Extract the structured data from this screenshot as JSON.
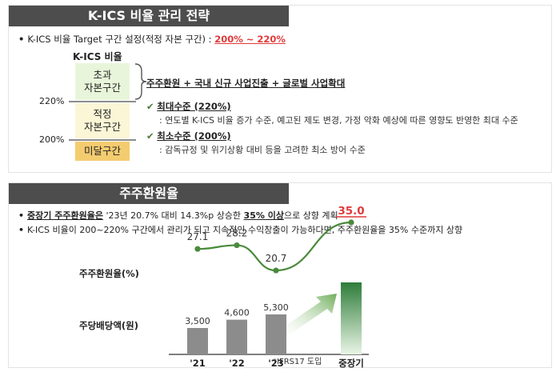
{
  "panel1": {
    "header": "K-ICS 비율 관리 전략",
    "target_prefix": "K-ICS 비율 Target 구간 설정(적정 자본 구간) : ",
    "target_value": "200% ~ 220%",
    "ladder_title": "K-ICS 비율",
    "excess_label": "초과\n자본구간",
    "proper_label": "적정\n자본구간",
    "short_label": "미달구간",
    "pct_220": "220%",
    "pct_200": "200%",
    "brace_text": "주주환원 + 국내 신규 사업진출 + 글로벌 사업확대",
    "max_title": "최대수준 (220%)",
    "max_desc": ": 연도별 K-ICS 비율 증가 수준, 예고된 제도 변경, 가정 악화 예상에 따른 영향도 반영한 최대 수준",
    "min_title": "최소수준 (200%)",
    "min_desc": ": 감독규정 및 위기상황 대비 등을 고려한 최소 방어 수준",
    "check_icon": "✔"
  },
  "panel2": {
    "header": "주주환원율",
    "b1_bold": "중장기 주주환원율은",
    "b1_mid": " '23년 20.7% 대비 14.3%p 상승한 ",
    "b1_target": "35% 이상",
    "b1_tail": "으로 상향 계획",
    "b2": "K-ICS 비율이 200~220% 구간에서 관리가 되고 지속적인 수익창출이 가능하다면, 주주환원율을 35% 수준까지 상향",
    "rate_label": "주주환원율(%)",
    "dps_label": "주당배당액(원)",
    "footnote": "*IFRS17 도입"
  },
  "chart_data": {
    "type": "bar+line",
    "categories": [
      "'21",
      "'22",
      "'23",
      "중장기"
    ],
    "series": [
      {
        "name": "주당배당액(원)",
        "type": "bar",
        "values": [
          3500,
          4600,
          5300,
          null
        ],
        "labels": [
          "3,500",
          "4,600",
          "5,300",
          ""
        ]
      },
      {
        "name": "주주환원율(%)",
        "type": "line",
        "values": [
          27.1,
          28.2,
          20.7,
          35.0
        ],
        "labels": [
          "27.1",
          "28.2",
          "20.7",
          "35.0"
        ]
      }
    ],
    "target_bar_category": "중장기",
    "colors": {
      "bar": "#8c8c8c",
      "line": "#4a8a3c",
      "target_bar_top": "#2e7d3a",
      "target_bar_bottom": "#eaf5e6",
      "target_label": "#e03a3a"
    }
  }
}
